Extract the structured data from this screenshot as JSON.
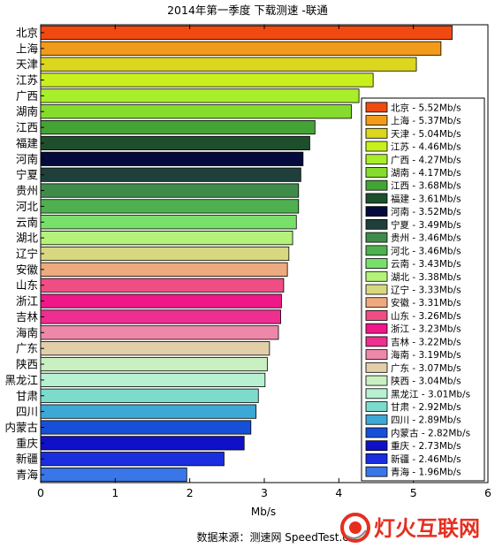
{
  "chart_data": {
    "type": "bar",
    "orientation": "horizontal",
    "title": "2014年第一季度 下载测速 -联通",
    "xlabel": "Mb/s",
    "ylabel": "",
    "xlim": [
      0,
      6
    ],
    "x_ticks": [
      "0",
      "1",
      "2",
      "3",
      "4",
      "5",
      "6"
    ],
    "grid": false,
    "legend_position": "right",
    "categories": [
      "北京",
      "上海",
      "天津",
      "江苏",
      "广西",
      "湖南",
      "江西",
      "福建",
      "河南",
      "宁夏",
      "贵州",
      "河北",
      "云南",
      "湖北",
      "辽宁",
      "安徽",
      "山东",
      "浙江",
      "吉林",
      "海南",
      "广东",
      "陕西",
      "黑龙江",
      "甘肃",
      "四川",
      "内蒙古",
      "重庆",
      "新疆",
      "青海"
    ],
    "values": [
      5.52,
      5.37,
      5.04,
      4.46,
      4.27,
      4.17,
      3.68,
      3.61,
      3.52,
      3.49,
      3.46,
      3.46,
      3.43,
      3.38,
      3.33,
      3.31,
      3.26,
      3.23,
      3.22,
      3.19,
      3.07,
      3.04,
      3.01,
      2.92,
      2.89,
      2.82,
      2.73,
      2.46,
      1.96
    ],
    "legend_entries": [
      "北京 - 5.52Mb/s",
      "上海 - 5.37Mb/s",
      "天津 - 5.04Mb/s",
      "江苏 - 4.46Mb/s",
      "广西 - 4.27Mb/s",
      "湖南 - 4.17Mb/s",
      "江西 - 3.68Mb/s",
      "福建 - 3.61Mb/s",
      "河南 - 3.52Mb/s",
      "宁夏 - 3.49Mb/s",
      "贵州 - 3.46Mb/s",
      "河北 - 3.46Mb/s",
      "云南 - 3.43Mb/s",
      "湖北 - 3.38Mb/s",
      "辽宁 - 3.33Mb/s",
      "安徽 - 3.31Mb/s",
      "山东 - 3.26Mb/s",
      "浙江 - 3.23Mb/s",
      "吉林 - 3.22Mb/s",
      "海南 - 3.19Mb/s",
      "广东 - 3.07Mb/s",
      "陕西 - 3.04Mb/s",
      "黑龙江 - 3.01Mb/s",
      "甘肃 - 2.92Mb/s",
      "四川 - 2.89Mb/s",
      "内蒙古 - 2.82Mb/s",
      "重庆 - 2.73Mb/s",
      "新疆 - 2.46Mb/s",
      "青海 - 1.96Mb/s"
    ],
    "colors": [
      "#f04a12",
      "#f29a1a",
      "#dbd61e",
      "#c8f01c",
      "#a8ee2a",
      "#86dc2c",
      "#43a435",
      "#1e4f2c",
      "#050a3c",
      "#1f3f3a",
      "#3f8c4a",
      "#4fb04f",
      "#78e06a",
      "#b4f27a",
      "#d8d880",
      "#eeaa7e",
      "#ee4e84",
      "#ee1888",
      "#ee2e90",
      "#ee88a8",
      "#e2cfaa",
      "#c8f0c0",
      "#b6f2d2",
      "#7cdccc",
      "#3ca8d6",
      "#1650d8",
      "#1010c8",
      "#1a2ee0",
      "#3a76e8"
    ],
    "source_note": "数据来源：测速网 SpeedTest.cn"
  },
  "watermark": {
    "text": "灯火互联网",
    "colors": {
      "text": "#e62e1f",
      "disc": "#e62e1f"
    }
  }
}
